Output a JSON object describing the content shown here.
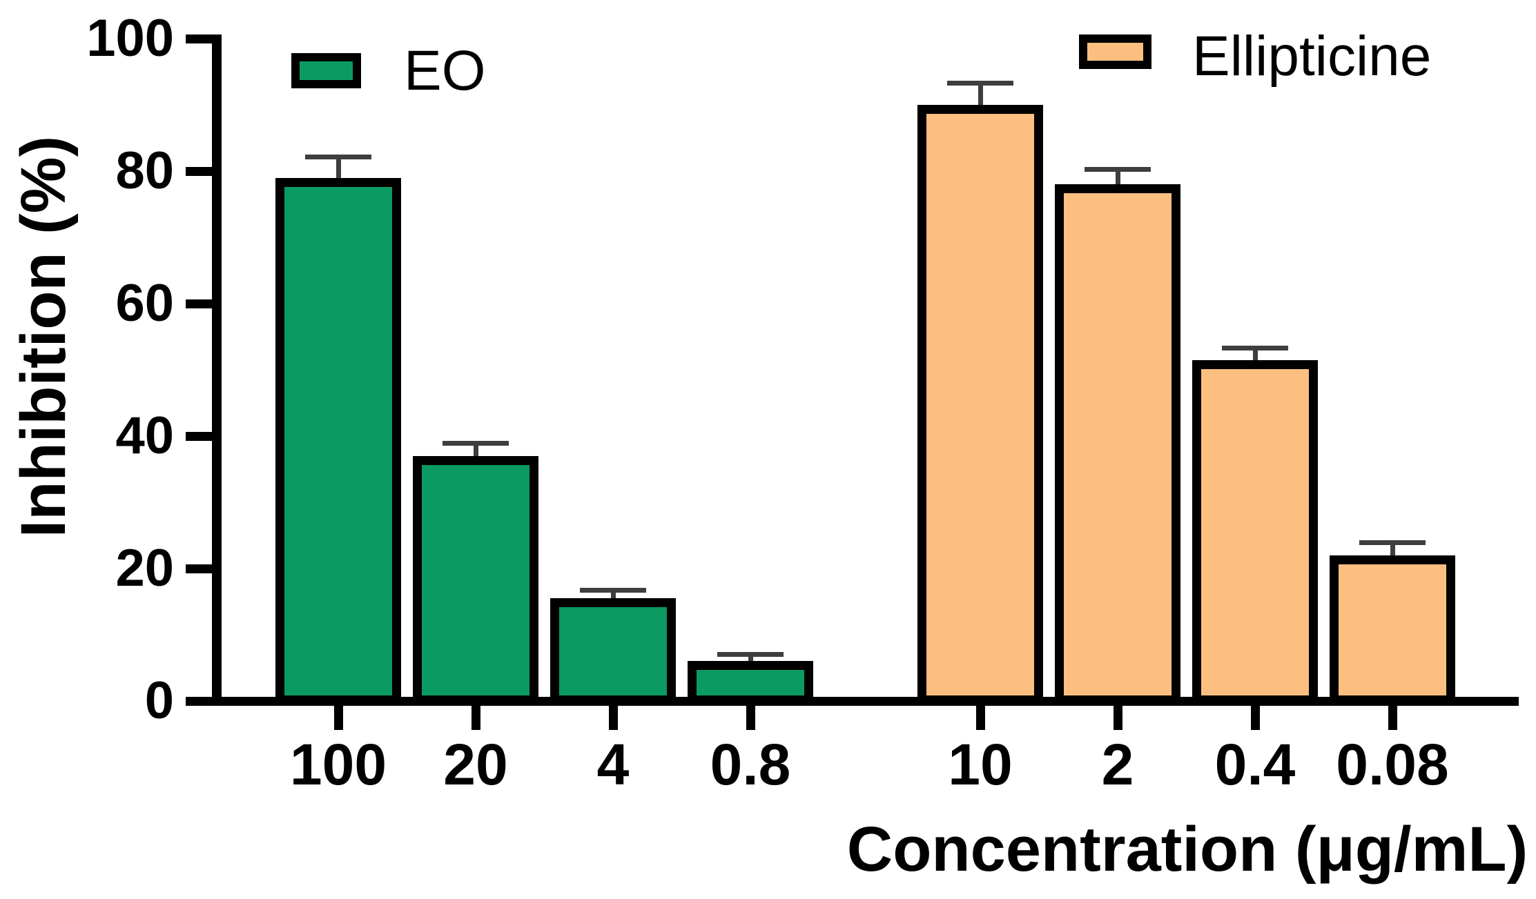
{
  "chart_data": {
    "type": "bar",
    "title": "",
    "xlabel": "Concentration (μg/mL)",
    "ylabel": "Inhibition (%)",
    "ylim": [
      0,
      100
    ],
    "yticks": [
      "0",
      "20",
      "40",
      "60",
      "80",
      "100"
    ],
    "grid": false,
    "legend_position": "top-inside",
    "groups": [
      {
        "name": "EO",
        "color": "#0b9b62",
        "categories": [
          "100",
          "20",
          "4",
          "0.8"
        ],
        "values": [
          79,
          37,
          15.5,
          6
        ],
        "errors_plus": [
          3.1,
          1.9,
          1.2,
          1.0
        ]
      },
      {
        "name": "Ellipticine",
        "color": "#fdbf80",
        "categories": [
          "10",
          "2",
          "0.4",
          "0.08"
        ],
        "values": [
          90,
          78,
          51.5,
          22
        ],
        "errors_plus": [
          3.3,
          2.3,
          1.8,
          1.9
        ]
      }
    ],
    "colors": {
      "bar_outline": "#000000",
      "error_bar": "#3e3e3e",
      "axis": "#000000",
      "background": "#ffffff"
    }
  },
  "legend": {
    "eo_label": "EO",
    "ellipticine_label": "Ellipticine"
  }
}
